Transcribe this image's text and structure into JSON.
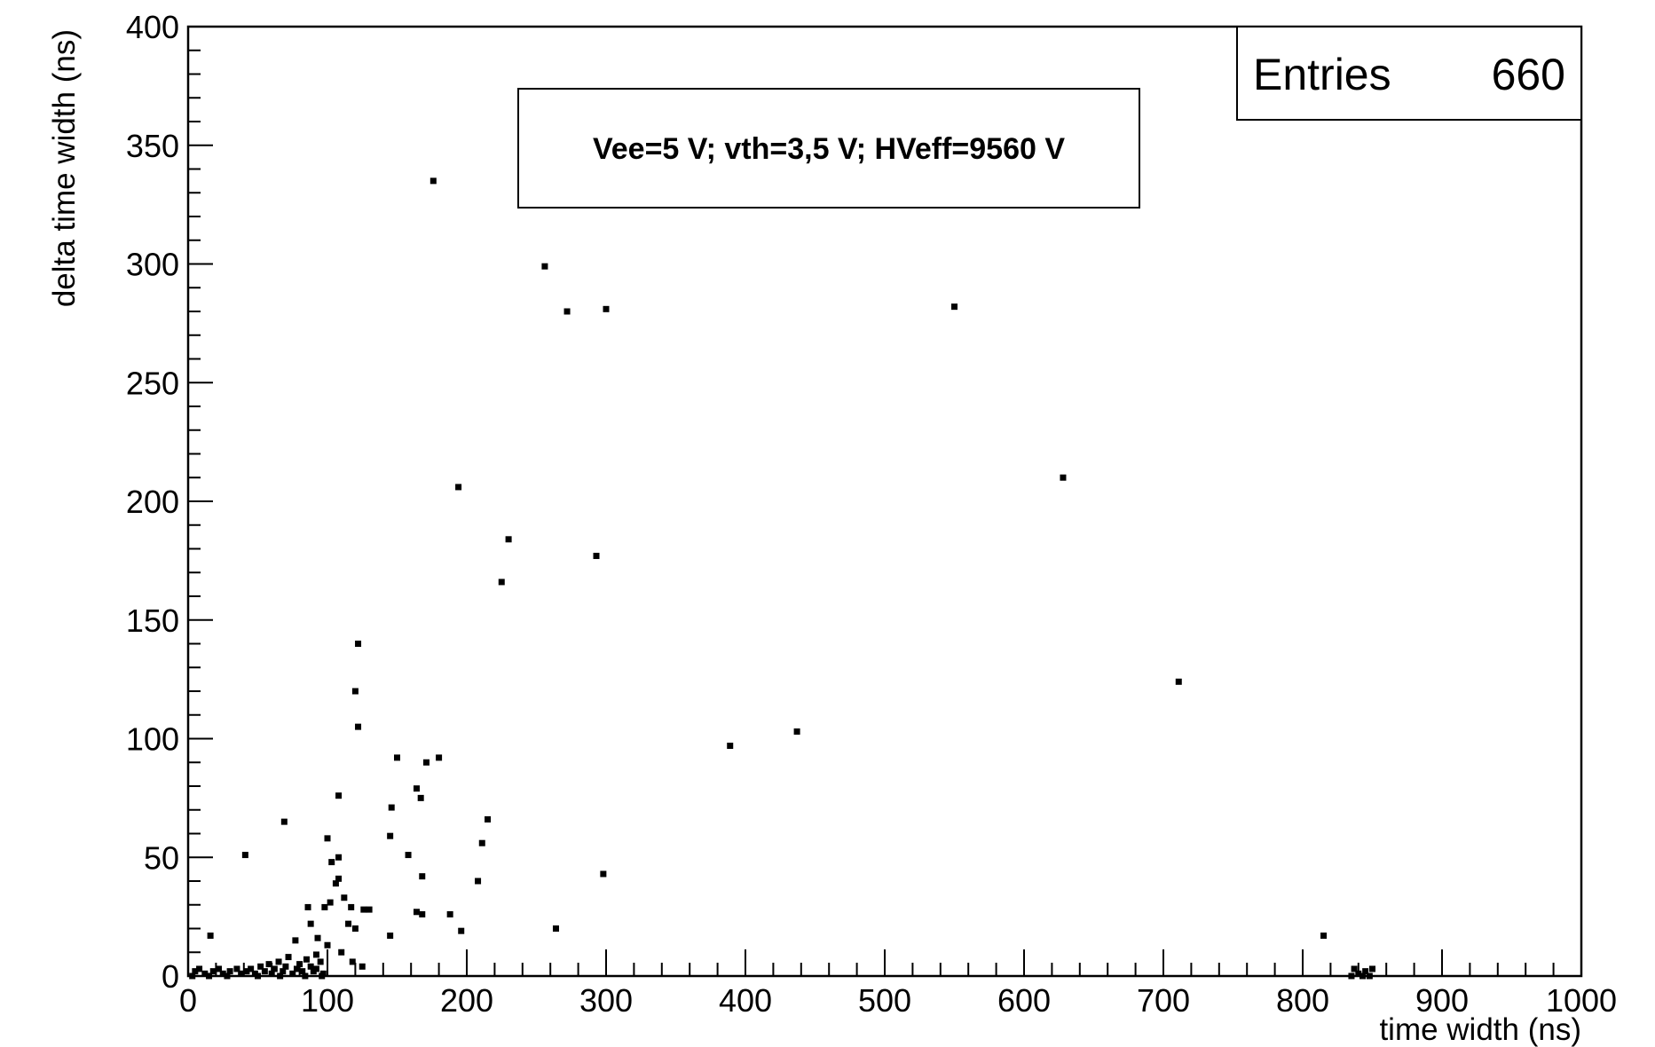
{
  "chart_data": {
    "type": "scatter",
    "title": "",
    "xlabel": "time width (ns)",
    "ylabel": "delta time width (ns)",
    "xlim": [
      0,
      1000
    ],
    "ylim": [
      0,
      400
    ],
    "x_ticks": [
      0,
      100,
      200,
      300,
      400,
      500,
      600,
      700,
      800,
      900,
      1000
    ],
    "y_ticks": [
      0,
      50,
      100,
      150,
      200,
      250,
      300,
      350,
      400
    ],
    "grid": false,
    "marker_color": "#000000",
    "stats_box": {
      "label": "Entries",
      "value": "660",
      "position": "top-right"
    },
    "annotation": "Vee=5 V; vth=3,5 V; HVeff=9560 V",
    "series": [
      {
        "points": [
          [
            176,
            335
          ],
          [
            256,
            299
          ],
          [
            272,
            280
          ],
          [
            300,
            281
          ],
          [
            550,
            282
          ],
          [
            194,
            206
          ],
          [
            230,
            184
          ],
          [
            225,
            166
          ],
          [
            293,
            177
          ],
          [
            628,
            210
          ],
          [
            122,
            140
          ],
          [
            120,
            120
          ],
          [
            122,
            105
          ],
          [
            150,
            92
          ],
          [
            180,
            92
          ],
          [
            171,
            90
          ],
          [
            389,
            97
          ],
          [
            437,
            103
          ],
          [
            711,
            124
          ],
          [
            108,
            76
          ],
          [
            167,
            75
          ],
          [
            146,
            71
          ],
          [
            164,
            79
          ],
          [
            69,
            65
          ],
          [
            41,
            51
          ],
          [
            100,
            58
          ],
          [
            103,
            48
          ],
          [
            108,
            50
          ],
          [
            158,
            51
          ],
          [
            215,
            66
          ],
          [
            211,
            56
          ],
          [
            145,
            59
          ],
          [
            298,
            43
          ],
          [
            208,
            40
          ],
          [
            168,
            42
          ],
          [
            108,
            41
          ],
          [
            106,
            39
          ],
          [
            112,
            33
          ],
          [
            117,
            29
          ],
          [
            126,
            28
          ],
          [
            130,
            28
          ],
          [
            98,
            29
          ],
          [
            102,
            31
          ],
          [
            86,
            29
          ],
          [
            115,
            22
          ],
          [
            120,
            20
          ],
          [
            164,
            27
          ],
          [
            168,
            26
          ],
          [
            188,
            26
          ],
          [
            196,
            19
          ],
          [
            264,
            20
          ],
          [
            145,
            17
          ],
          [
            88,
            22
          ],
          [
            93,
            16
          ],
          [
            815,
            17
          ],
          [
            16,
            17
          ],
          [
            77,
            15
          ],
          [
            92,
            9
          ],
          [
            100,
            13
          ],
          [
            110,
            10
          ],
          [
            118,
            6
          ],
          [
            125,
            4
          ],
          [
            5,
            2
          ],
          [
            8,
            3
          ],
          [
            12,
            1
          ],
          [
            18,
            2
          ],
          [
            22,
            3
          ],
          [
            25,
            1
          ],
          [
            30,
            2
          ],
          [
            35,
            3
          ],
          [
            38,
            1
          ],
          [
            42,
            2
          ],
          [
            45,
            3
          ],
          [
            48,
            1
          ],
          [
            52,
            4
          ],
          [
            55,
            2
          ],
          [
            58,
            5
          ],
          [
            60,
            1
          ],
          [
            62,
            3
          ],
          [
            65,
            6
          ],
          [
            68,
            2
          ],
          [
            70,
            4
          ],
          [
            72,
            8
          ],
          [
            75,
            1
          ],
          [
            78,
            3
          ],
          [
            80,
            5
          ],
          [
            82,
            2
          ],
          [
            85,
            7
          ],
          [
            88,
            4
          ],
          [
            90,
            2
          ],
          [
            92,
            3
          ],
          [
            95,
            6
          ],
          [
            97,
            1
          ],
          [
            3,
            0
          ],
          [
            15,
            0
          ],
          [
            28,
            0
          ],
          [
            50,
            0
          ],
          [
            66,
            0
          ],
          [
            84,
            0
          ],
          [
            96,
            0
          ],
          [
            835,
            0
          ],
          [
            840,
            1
          ],
          [
            845,
            2
          ],
          [
            848,
            0
          ],
          [
            850,
            3
          ],
          [
            837,
            3
          ],
          [
            843,
            0
          ]
        ]
      }
    ]
  }
}
